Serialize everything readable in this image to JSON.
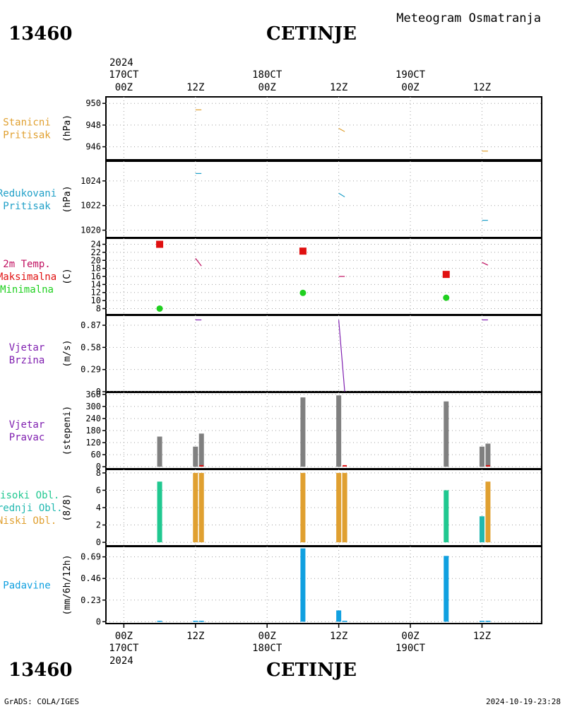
{
  "header": {
    "station_id": "13460",
    "station_name": "CETINJE",
    "chart_title": "Meteogram Osmatranja"
  },
  "footer": {
    "station_id": "13460",
    "station_name": "CETINJE",
    "credit": "GrADS: COLA/IGES",
    "timestamp": "2024-10-19-23:28"
  },
  "time_axis": {
    "year": "2024",
    "ticks": [
      {
        "hour": 0,
        "time": "00Z",
        "date": "170CT"
      },
      {
        "hour": 12,
        "time": "12Z",
        "date": ""
      },
      {
        "hour": 24,
        "time": "00Z",
        "date": "180CT"
      },
      {
        "hour": 36,
        "time": "12Z",
        "date": ""
      },
      {
        "hour": 48,
        "time": "00Z",
        "date": "190CT"
      },
      {
        "hour": 60,
        "time": "12Z",
        "date": ""
      }
    ],
    "range_hours": [
      -3,
      70
    ]
  },
  "colors": {
    "station_pressure": "#e0a030",
    "reduced_pressure": "#20a0c8",
    "temp_label": "#c01060",
    "temp_line": "#c01060",
    "tmax": "#e01010",
    "tmin": "#20d020",
    "wind": "#8020b0",
    "wind_dir_bar": "#808080",
    "wind_dir_red": "#e01010",
    "cloud_high": "#20c890",
    "cloud_mid": "#20b8b0",
    "cloud_low": "#e0a030",
    "precip": "#10a0e0",
    "grid": "#a0a0a0"
  },
  "chart_data": [
    {
      "id": "station-pressure",
      "type": "line",
      "label_lines": [
        "Stanicni",
        "Pritisak"
      ],
      "label_color_key": "station_pressure",
      "ylabel": "(hPa)",
      "ylim": [
        944.8,
        950.6
      ],
      "yticks": [
        946,
        948,
        950
      ],
      "series": [
        {
          "color_key": "station_pressure",
          "segments": [
            [
              [
                12,
                949.4
              ],
              [
                13,
                949.4
              ]
            ],
            [
              [
                36,
                947.7
              ],
              [
                37,
                947.4
              ]
            ],
            [
              [
                60,
                945.6
              ],
              [
                61,
                945.6
              ]
            ]
          ]
        }
      ]
    },
    {
      "id": "reduced-pressure",
      "type": "line",
      "label_lines": [
        "Redukovani",
        "Pritisak"
      ],
      "label_color_key": "reduced_pressure",
      "ylabel": "(hPa)",
      "ylim": [
        1019.4,
        1025.6
      ],
      "yticks": [
        1020,
        1022,
        1024
      ],
      "series": [
        {
          "color_key": "reduced_pressure",
          "segments": [
            [
              [
                12,
                1024.6
              ],
              [
                13,
                1024.6
              ]
            ],
            [
              [
                36,
                1023.0
              ],
              [
                37,
                1022.7
              ]
            ],
            [
              [
                60,
                1020.8
              ],
              [
                61,
                1020.8
              ]
            ]
          ]
        }
      ]
    },
    {
      "id": "temperature",
      "type": "line",
      "label_lines": [
        "2m Temp.",
        "Maksimalna",
        "Minimalna"
      ],
      "label_color_keys": [
        "temp_label",
        "tmax",
        "tmin"
      ],
      "ylabel": "(C)",
      "ylim": [
        6.5,
        25.5
      ],
      "yticks": [
        8,
        10,
        12,
        14,
        16,
        18,
        20,
        22,
        24
      ],
      "series": [
        {
          "color_key": "temp_line",
          "segments": [
            [
              [
                12,
                20.5
              ],
              [
                13,
                18.6
              ]
            ],
            [
              [
                36,
                16.0
              ],
              [
                37,
                16.0
              ]
            ],
            [
              [
                60,
                19.5
              ],
              [
                61,
                18.8
              ]
            ]
          ]
        }
      ],
      "tmax": [
        {
          "x": 6,
          "y": 24.0
        },
        {
          "x": 30,
          "y": 22.3
        },
        {
          "x": 54,
          "y": 16.5
        }
      ],
      "tmin": [
        {
          "x": 6,
          "y": 8.0
        },
        {
          "x": 30,
          "y": 11.9
        },
        {
          "x": 54,
          "y": 10.7
        }
      ]
    },
    {
      "id": "wind-speed",
      "type": "line",
      "label_lines": [
        "Vjetar",
        "Brzina"
      ],
      "label_color_key": "wind",
      "ylabel": "(m/s)",
      "ylim": [
        0,
        1.0
      ],
      "yticks": [
        0,
        0.29,
        0.58,
        0.87
      ],
      "series": [
        {
          "color_key": "wind",
          "segments": [
            [
              [
                12,
                0.94
              ],
              [
                13,
                0.94
              ]
            ],
            [
              [
                36,
                0.94
              ],
              [
                37,
                0.0
              ]
            ],
            [
              [
                60,
                0.94
              ],
              [
                61,
                0.94
              ]
            ]
          ]
        }
      ]
    },
    {
      "id": "wind-direction",
      "type": "bar",
      "label_lines": [
        "Vjetar",
        "Pravac"
      ],
      "label_color_key": "wind",
      "ylabel": "(stepeni)",
      "ylim": [
        -10,
        370
      ],
      "yticks": [
        0,
        60,
        120,
        180,
        240,
        300,
        360
      ],
      "bars": [
        {
          "x": 6,
          "value": 150,
          "color_key": "wind_dir_bar"
        },
        {
          "x": 12,
          "value": 100,
          "color_key": "wind_dir_bar"
        },
        {
          "x": 13,
          "value": 165,
          "color_key": "wind_dir_bar"
        },
        {
          "x": 30,
          "value": 345,
          "color_key": "wind_dir_bar"
        },
        {
          "x": 36,
          "value": 355,
          "color_key": "wind_dir_bar"
        },
        {
          "x": 54,
          "value": 325,
          "color_key": "wind_dir_bar"
        },
        {
          "x": 60,
          "value": 100,
          "color_key": "wind_dir_bar"
        },
        {
          "x": 61,
          "value": 115,
          "color_key": "wind_dir_bar"
        }
      ],
      "red_marks": [
        {
          "x": 13,
          "value": 8
        },
        {
          "x": 37,
          "value": 8
        },
        {
          "x": 61,
          "value": 8
        }
      ]
    },
    {
      "id": "clouds",
      "type": "bar",
      "label_lines": [
        "Visoki Obl.",
        "Srednji Obl.",
        "Niski Obl."
      ],
      "label_color_keys": [
        "cloud_high",
        "cloud_mid",
        "cloud_low"
      ],
      "ylabel": "(8/8)",
      "ylim": [
        -0.4,
        8.4
      ],
      "yticks": [
        0,
        2,
        4,
        6,
        8
      ],
      "bars": [
        {
          "x": 6,
          "value": 7,
          "color_key": "cloud_high"
        },
        {
          "x": 12,
          "value": 8,
          "color_key": "cloud_low"
        },
        {
          "x": 13,
          "value": 8,
          "color_key": "cloud_low"
        },
        {
          "x": 30,
          "value": 8,
          "color_key": "cloud_low"
        },
        {
          "x": 36,
          "value": 8,
          "color_key": "cloud_low"
        },
        {
          "x": 37,
          "value": 8,
          "color_key": "cloud_low"
        },
        {
          "x": 54,
          "value": 6,
          "color_key": "cloud_high"
        },
        {
          "x": 60,
          "value": 3,
          "color_key": "cloud_mid"
        },
        {
          "x": 61,
          "value": 7,
          "color_key": "cloud_low"
        }
      ]
    },
    {
      "id": "precipitation",
      "type": "bar",
      "label_lines": [
        "Padavine"
      ],
      "label_color_key": "precip",
      "ylabel": "(mm/6h/12h)",
      "ylim": [
        -0.02,
        0.8
      ],
      "yticks": [
        0,
        0.23,
        0.46,
        0.69
      ],
      "bars": [
        {
          "x": 6,
          "value": 0.01,
          "color_key": "precip"
        },
        {
          "x": 12,
          "value": 0.01,
          "color_key": "precip"
        },
        {
          "x": 13,
          "value": 0.01,
          "color_key": "precip"
        },
        {
          "x": 30,
          "value": 0.78,
          "color_key": "precip"
        },
        {
          "x": 36,
          "value": 0.12,
          "color_key": "precip"
        },
        {
          "x": 37,
          "value": 0.01,
          "color_key": "precip"
        },
        {
          "x": 54,
          "value": 0.7,
          "color_key": "precip"
        },
        {
          "x": 60,
          "value": 0.01,
          "color_key": "precip"
        },
        {
          "x": 61,
          "value": 0.01,
          "color_key": "precip"
        }
      ]
    }
  ]
}
